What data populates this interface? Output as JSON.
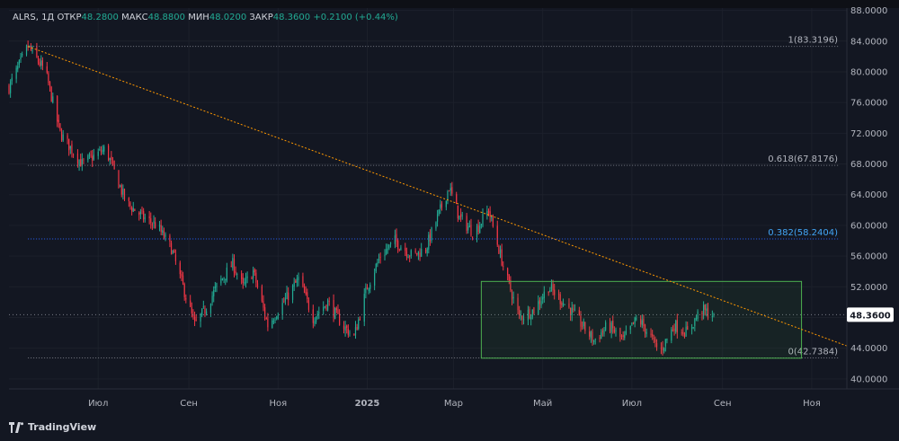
{
  "header": {
    "symbol": "ALRS, 1Д",
    "open_label": "ОТКР",
    "open": "48.2800",
    "high_label": "МАКС",
    "high": "48.8800",
    "low_label": "МИН",
    "low": "48.0200",
    "close_label": "ЗАКР",
    "close": "48.3600",
    "change": "+0.2100 (+0.44%)"
  },
  "branding": {
    "logo_icon": "tradingview-logo-icon",
    "name": "TradingView"
  },
  "colors": {
    "background": "#131722",
    "up": "#22ab94",
    "down": "#f23645",
    "trendline": "#ff9800",
    "fib": "#787b86",
    "fib_highlight": "#2962ff",
    "box": "#4caf50",
    "price_tag": "#131722"
  },
  "price_tag": "48.3600",
  "chart_data": {
    "type": "candlestick",
    "y_axis": {
      "ticks": [
        40,
        44,
        48,
        52,
        56,
        60,
        64,
        68,
        72,
        76,
        80,
        84,
        88
      ],
      "tick_labels": [
        "40.0000",
        "44.0000",
        "48.0000",
        "52.0000",
        "56.0000",
        "60.0000",
        "64.0000",
        "68.0000",
        "72.0000",
        "76.0000",
        "80.0000",
        "84.0000",
        "88.0000"
      ],
      "range": [
        38.7,
        88.3
      ]
    },
    "x_axis": {
      "range": [
        "2024-05-01",
        "2025-11-25"
      ],
      "ticks": [
        "2024-07-01",
        "2024-09-01",
        "2024-11-01",
        "2025-01-01",
        "2025-03-01",
        "2025-05-01",
        "2025-07-01",
        "2025-09-01",
        "2025-11-01"
      ],
      "tick_labels": [
        "Июл",
        "Сен",
        "Ноя",
        "2025",
        "Мар",
        "Май",
        "Июл",
        "Сен",
        "Ноя"
      ]
    },
    "close_path": [
      [
        "2024-05-01",
        78
      ],
      [
        "2024-05-14",
        83.3
      ],
      [
        "2024-05-26",
        80
      ],
      [
        "2024-06-05",
        72
      ],
      [
        "2024-06-20",
        68
      ],
      [
        "2024-07-06",
        70
      ],
      [
        "2024-07-20",
        63
      ],
      [
        "2024-08-01",
        61
      ],
      [
        "2024-08-10",
        60
      ],
      [
        "2024-08-20",
        57
      ],
      [
        "2024-09-05",
        47
      ],
      [
        "2024-09-12",
        49
      ],
      [
        "2024-09-20",
        52
      ],
      [
        "2024-10-01",
        55
      ],
      [
        "2024-10-08",
        52
      ],
      [
        "2024-10-15",
        54
      ],
      [
        "2024-10-25",
        47
      ],
      [
        "2024-11-05",
        50
      ],
      [
        "2024-11-15",
        53
      ],
      [
        "2024-11-25",
        48
      ],
      [
        "2024-12-05",
        50
      ],
      [
        "2024-12-15",
        47
      ],
      [
        "2024-12-23",
        45.5
      ],
      [
        "2025-01-01",
        52
      ],
      [
        "2025-01-10",
        56
      ],
      [
        "2025-01-20",
        58
      ],
      [
        "2025-02-01",
        56
      ],
      [
        "2025-02-10",
        57
      ],
      [
        "2025-02-20",
        62
      ],
      [
        "2025-02-26",
        65
      ],
      [
        "2025-03-05",
        61
      ],
      [
        "2025-03-15",
        59
      ],
      [
        "2025-03-25",
        62
      ],
      [
        "2025-04-05",
        54
      ],
      [
        "2025-04-15",
        48
      ],
      [
        "2025-04-25",
        49
      ],
      [
        "2025-05-05",
        52
      ],
      [
        "2025-05-20",
        49
      ],
      [
        "2025-06-05",
        45
      ],
      [
        "2025-06-15",
        47
      ],
      [
        "2025-06-25",
        45
      ],
      [
        "2025-07-05",
        48
      ],
      [
        "2025-07-12",
        46
      ],
      [
        "2025-07-20",
        43.5
      ],
      [
        "2025-07-30",
        47
      ],
      [
        "2025-08-08",
        46
      ],
      [
        "2025-08-17",
        49
      ],
      [
        "2025-08-26",
        48.36
      ]
    ],
    "fib_levels": [
      {
        "label": "1(83.3196)",
        "value": 83.3196,
        "start": "2024-05-14",
        "end": "2025-11-20"
      },
      {
        "label": "0.618(67.8176)",
        "value": 67.8176,
        "start": "2024-05-14",
        "end": "2025-11-20"
      },
      {
        "label": "0.382(58.2404)",
        "value": 58.2404,
        "start": "2024-05-14",
        "end": "2025-11-20",
        "highlight": true
      },
      {
        "label": "0(42.7384)",
        "value": 42.7384,
        "start": "2024-05-14",
        "end": "2025-11-20"
      }
    ],
    "trendline": {
      "start": [
        "2024-05-14",
        83.3
      ],
      "end": [
        "2025-11-25",
        44.3
      ]
    },
    "range_box": {
      "start": "2025-03-20",
      "end": "2025-10-25",
      "top": 52.7,
      "bottom": 42.7
    },
    "last_price": 48.36
  }
}
